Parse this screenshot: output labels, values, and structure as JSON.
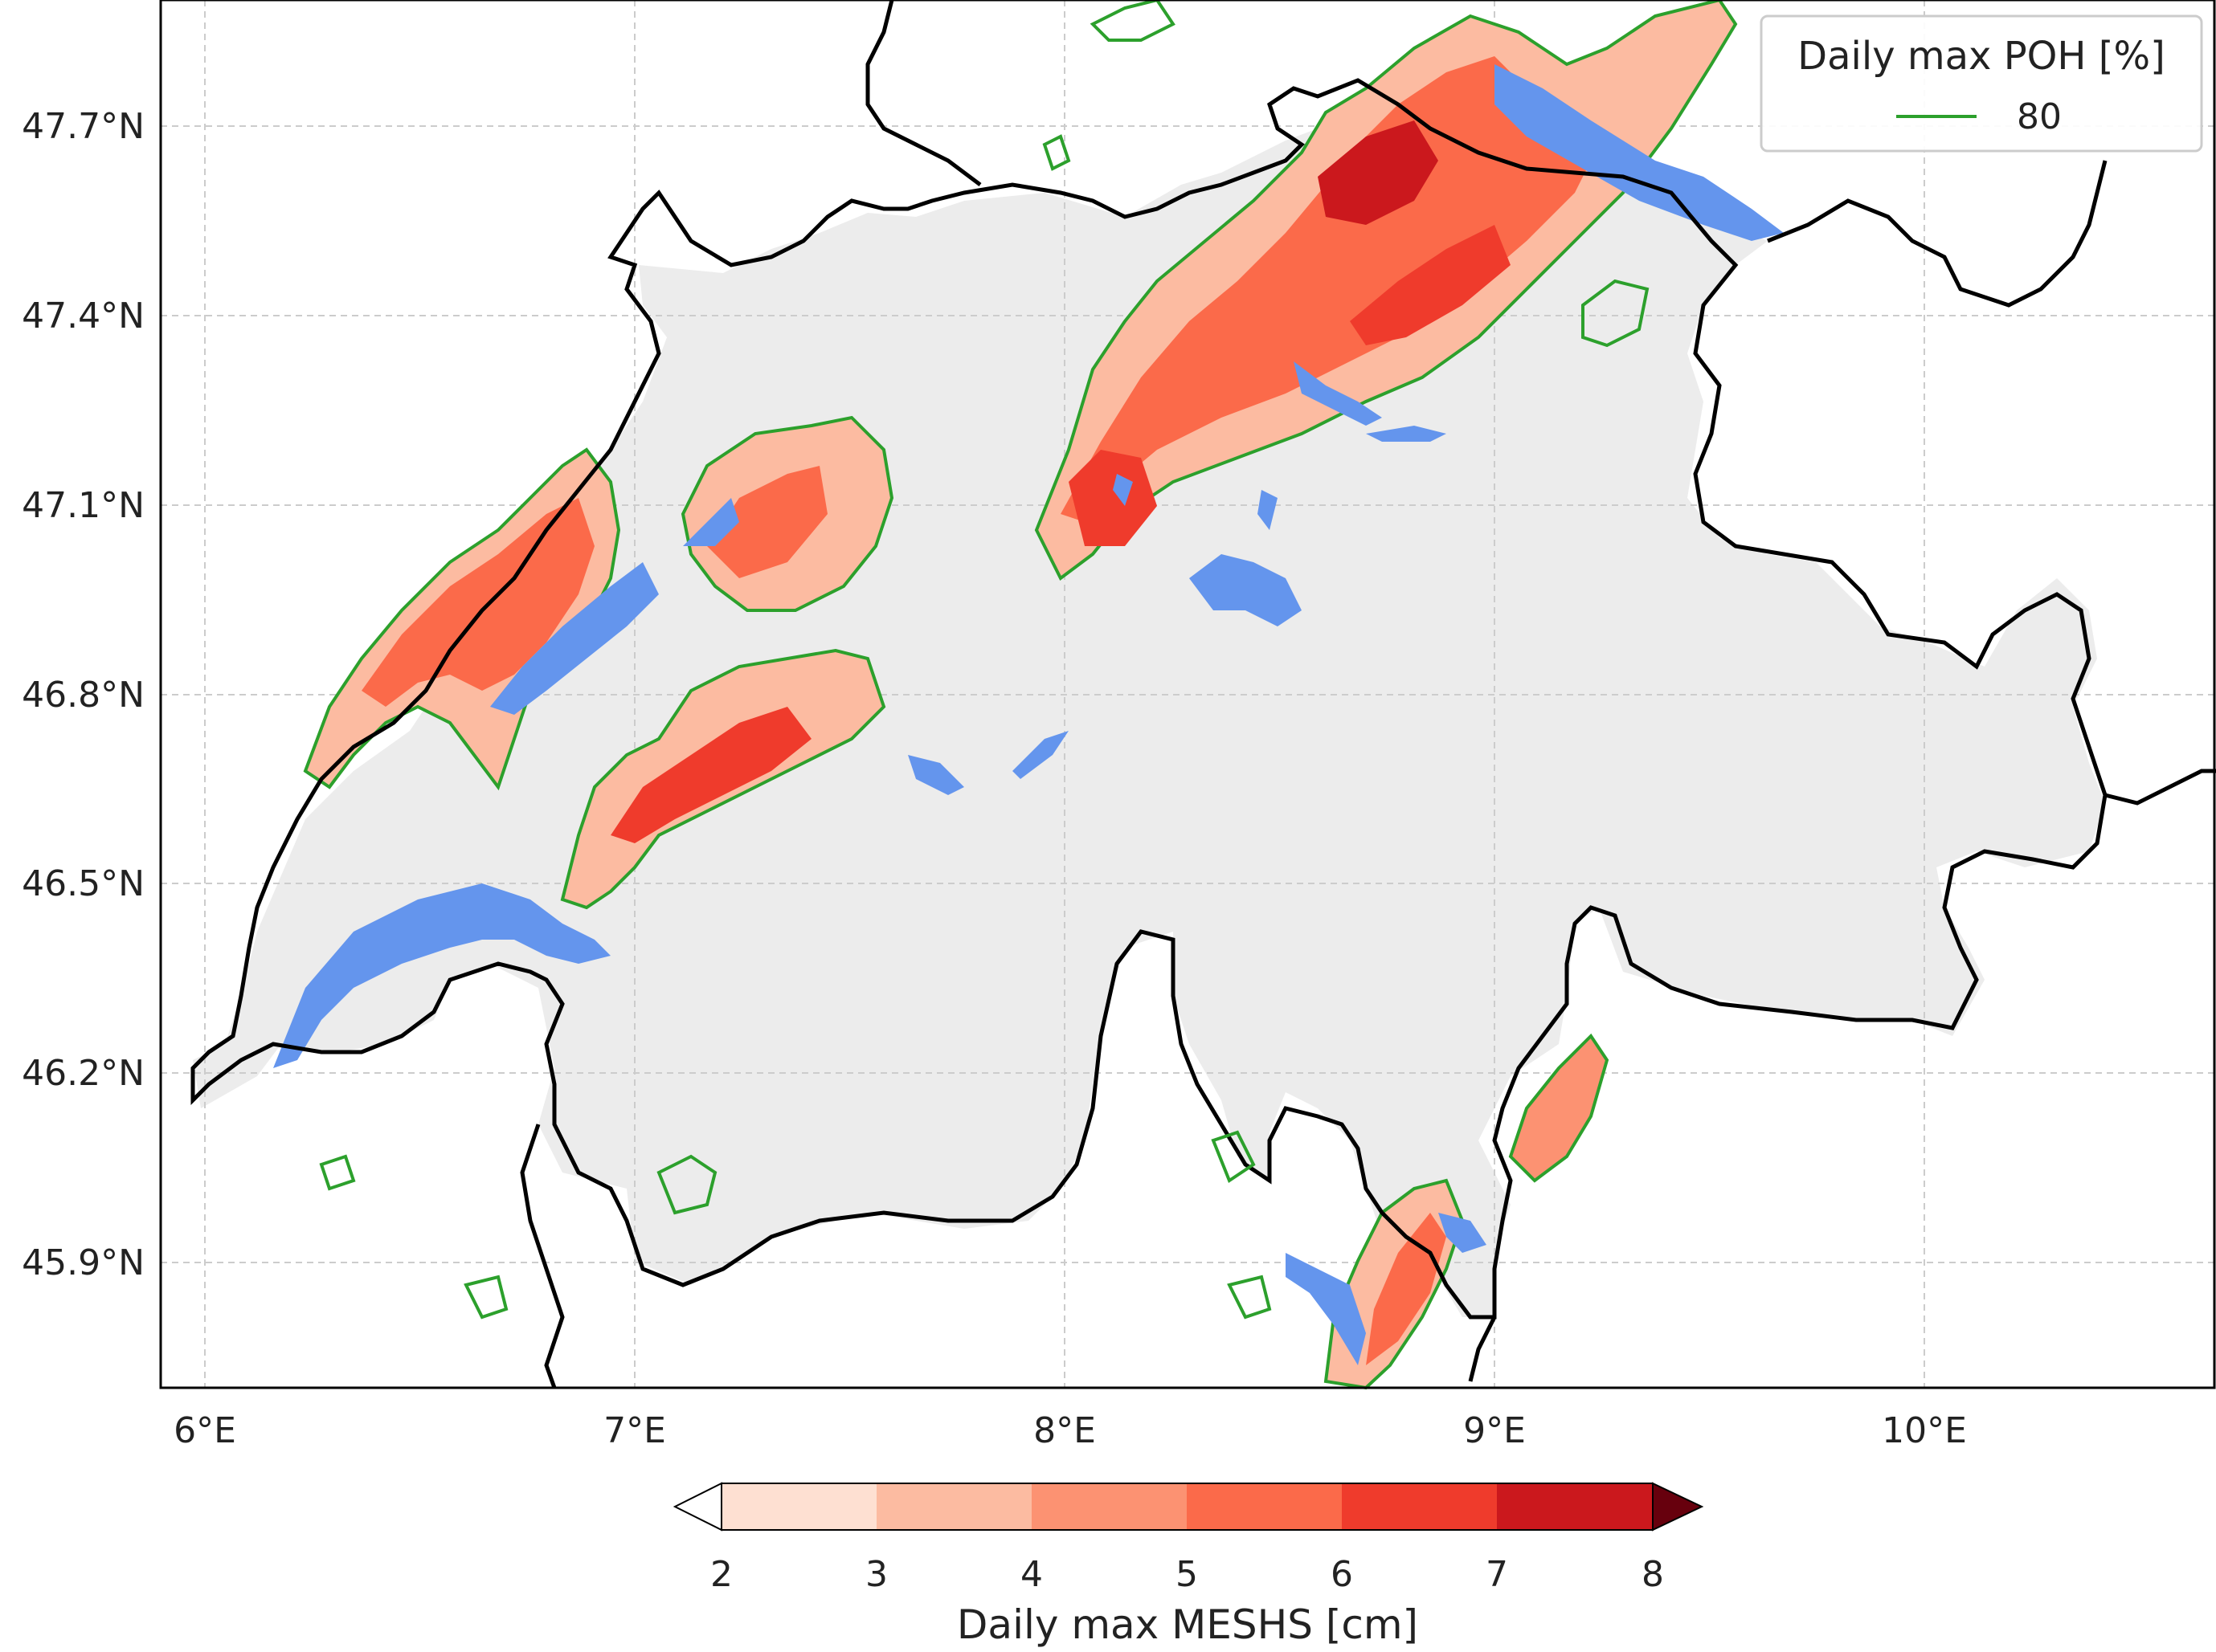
{
  "map": {
    "lat_ticks": [
      "47.7°N",
      "47.4°N",
      "47.1°N",
      "46.8°N",
      "46.5°N",
      "46.2°N",
      "45.9°N"
    ],
    "lon_ticks": [
      "6°E",
      "7°E",
      "8°E",
      "9°E",
      "10°E"
    ],
    "extent": {
      "lon": [
        5.9,
        10.7
      ],
      "lat": [
        45.7,
        47.9
      ]
    }
  },
  "legend": {
    "title": "Daily max POH [%]",
    "entries": [
      {
        "label": "80",
        "color": "#2ca02c"
      }
    ]
  },
  "colorbar": {
    "label": "Daily max MESHS [cm]",
    "ticks": [
      "2",
      "3",
      "4",
      "5",
      "6",
      "7",
      "8"
    ],
    "colors": [
      "#fee0d2",
      "#fcbba1",
      "#fc9272",
      "#fb6a4a",
      "#ef3b2c",
      "#cb181d",
      "#a50f15"
    ],
    "extend": "both"
  },
  "colors": {
    "border": "#000000",
    "lakes": "#6495ed",
    "poh_contour": "#2ca02c",
    "grid": "#cccccc"
  }
}
